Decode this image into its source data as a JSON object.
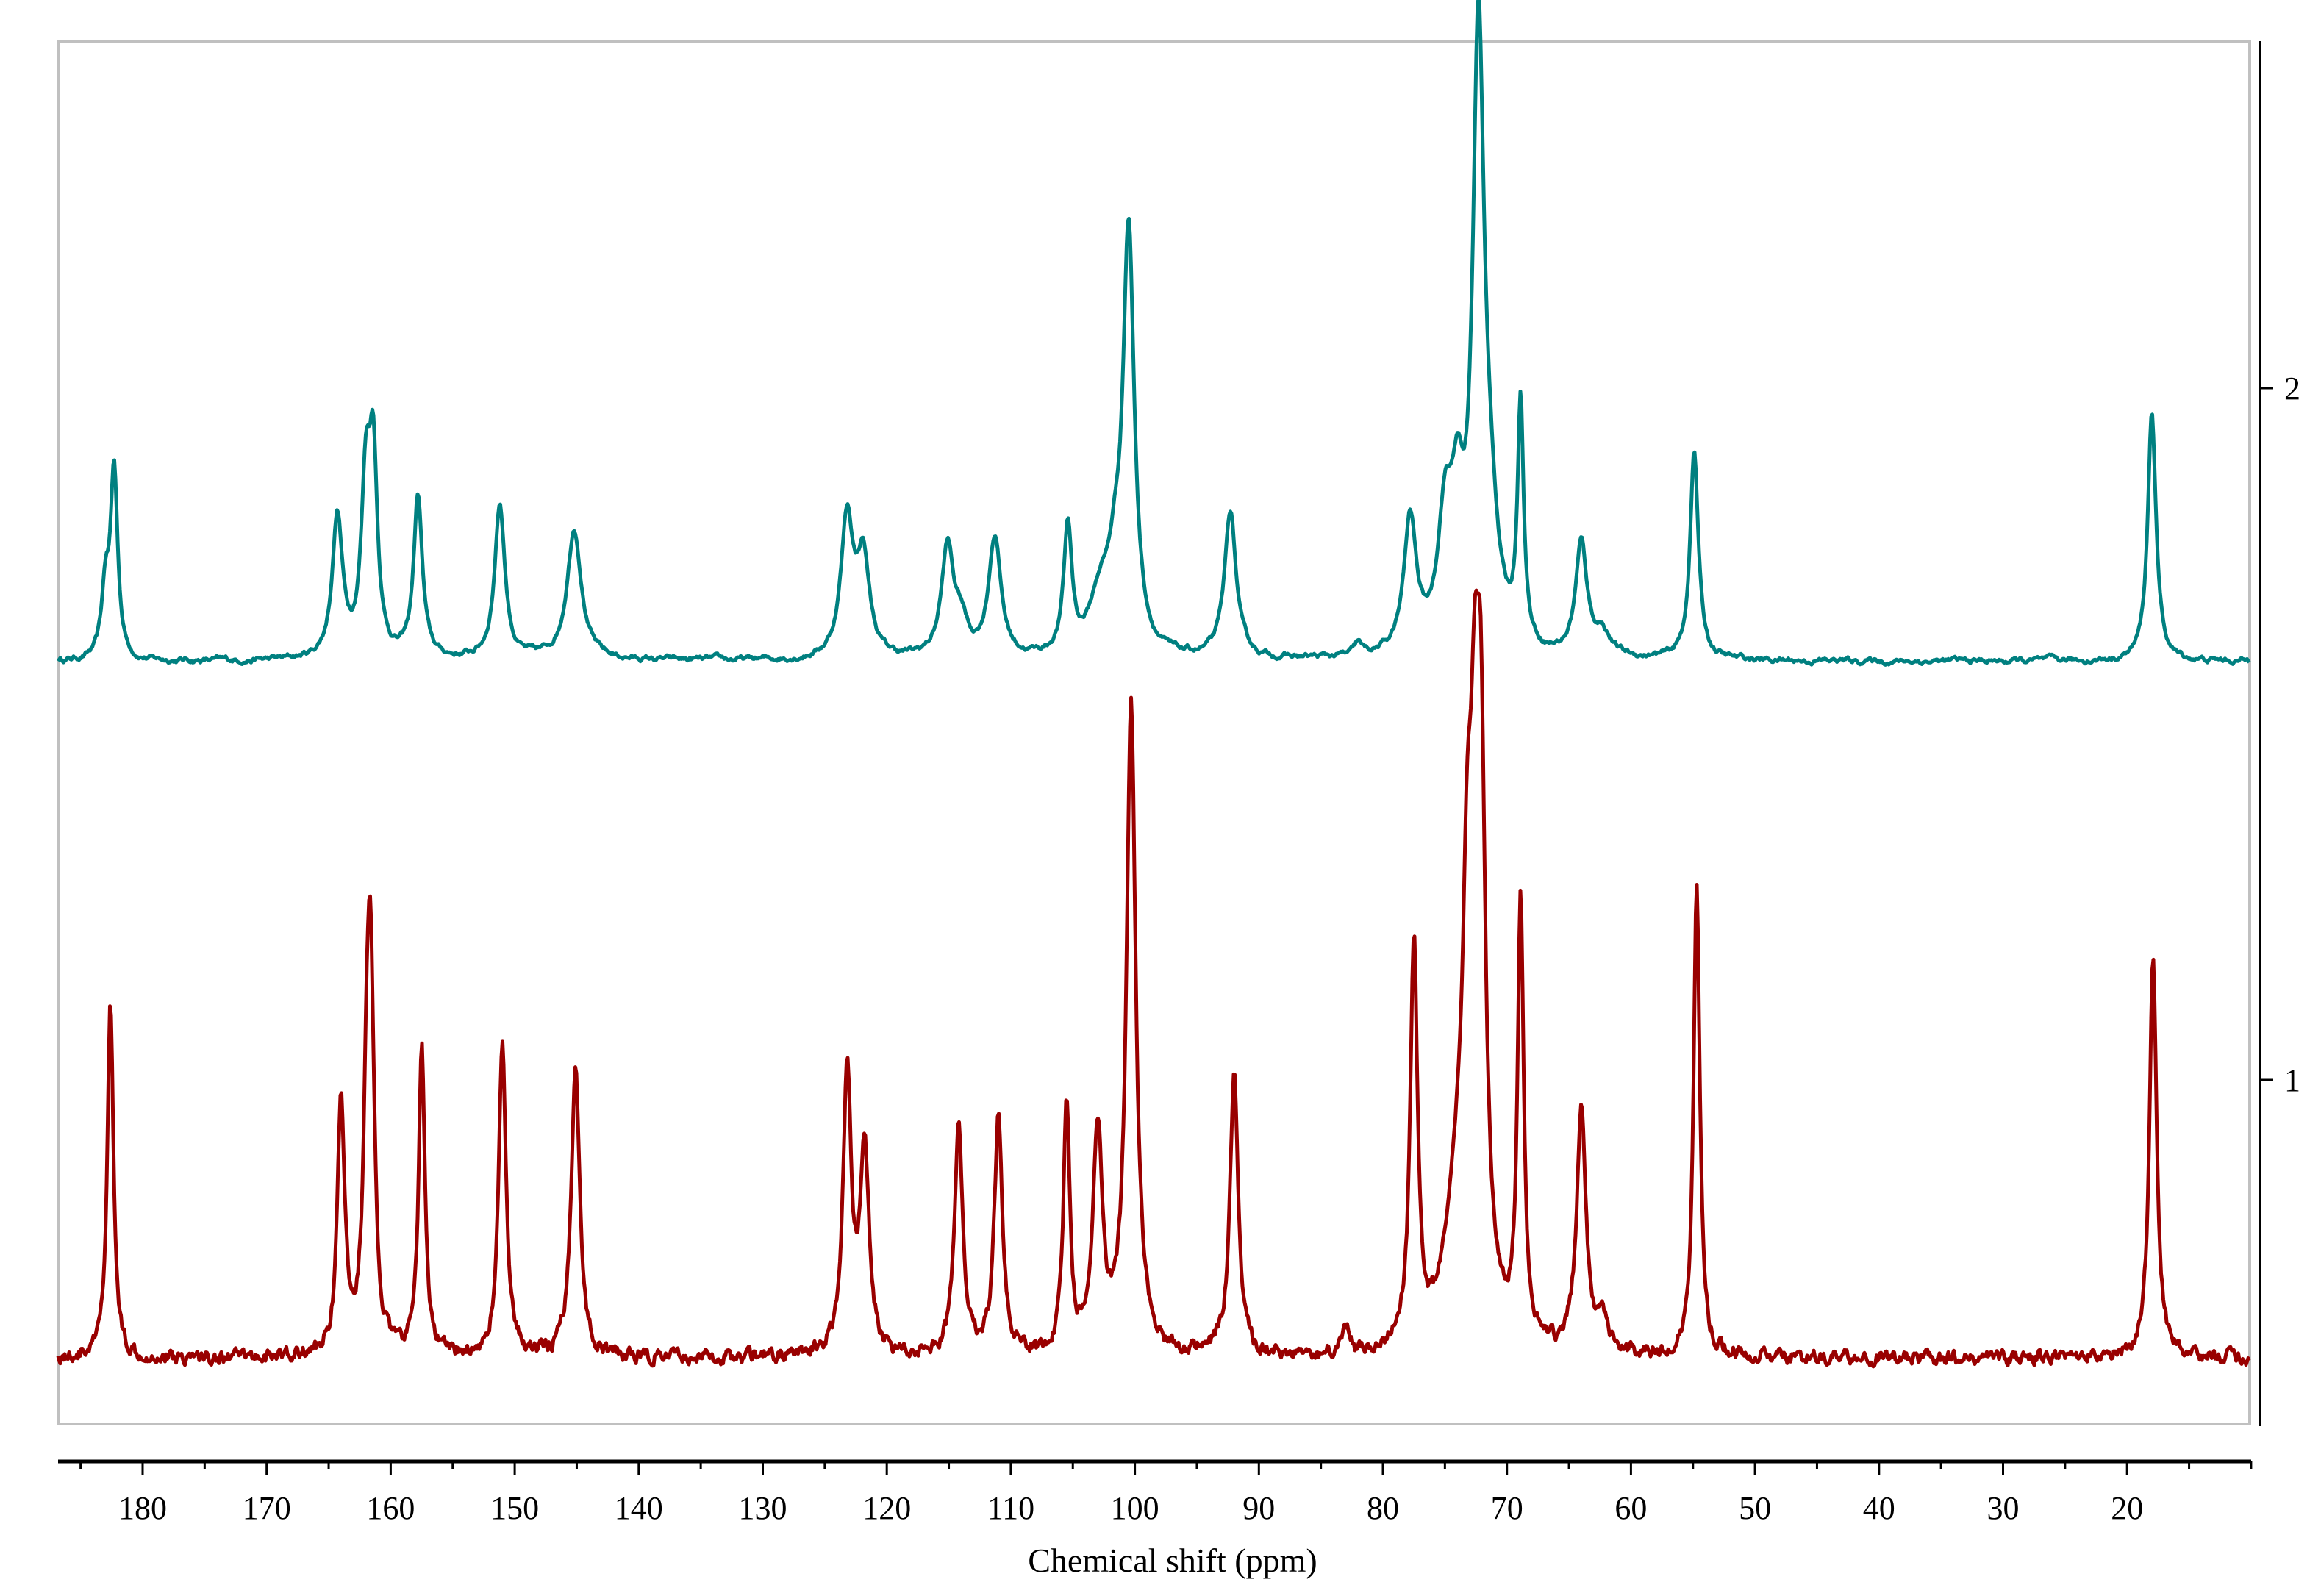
{
  "chart_data": {
    "type": "line",
    "title": "",
    "xlabel": "Chemical shift (ppm)",
    "ylabel": "",
    "x_reversed": true,
    "xlim": [
      187,
      10
    ],
    "x_ticks_major": [
      180,
      170,
      160,
      150,
      140,
      130,
      120,
      110,
      100,
      90,
      80,
      70,
      60,
      50,
      40,
      30,
      20
    ],
    "x_ticks_minor_step": 5,
    "y_ticks": [
      {
        "label": "2",
        "series_index": 0
      },
      {
        "label": "1",
        "series_index": 1
      }
    ],
    "grid": false,
    "legend": null,
    "series": [
      {
        "name": "2",
        "color": "#008080",
        "offset_label": "2",
        "peaks": [
          {
            "ppm": 183.0,
            "height": 0.22,
            "width": 0.35
          },
          {
            "ppm": 182.3,
            "height": 0.64,
            "width": 0.35
          },
          {
            "ppm": 164.3,
            "height": 0.48,
            "width": 0.5
          },
          {
            "ppm": 162.0,
            "height": 0.56,
            "width": 0.45
          },
          {
            "ppm": 161.4,
            "height": 0.62,
            "width": 0.4
          },
          {
            "ppm": 157.8,
            "height": 0.55,
            "width": 0.42
          },
          {
            "ppm": 151.2,
            "height": 0.53,
            "width": 0.5
          },
          {
            "ppm": 145.2,
            "height": 0.45,
            "width": 0.7
          },
          {
            "ppm": 123.2,
            "height": 0.47,
            "width": 0.6
          },
          {
            "ppm": 121.9,
            "height": 0.33,
            "width": 0.6
          },
          {
            "ppm": 115.1,
            "height": 0.37,
            "width": 0.6
          },
          {
            "ppm": 114.0,
            "height": 0.1,
            "width": 0.6
          },
          {
            "ppm": 111.3,
            "height": 0.41,
            "width": 0.6
          },
          {
            "ppm": 105.4,
            "height": 0.43,
            "width": 0.4
          },
          {
            "ppm": 102.8,
            "height": 0.18,
            "width": 1.0
          },
          {
            "ppm": 101.6,
            "height": 0.2,
            "width": 0.7
          },
          {
            "ppm": 100.5,
            "height": 1.42,
            "width": 0.55
          },
          {
            "ppm": 92.3,
            "height": 0.5,
            "width": 0.55
          },
          {
            "ppm": 82.0,
            "height": 0.04,
            "width": 0.3
          },
          {
            "ppm": 77.8,
            "height": 0.45,
            "width": 0.6
          },
          {
            "ppm": 75.0,
            "height": 0.42,
            "width": 0.7
          },
          {
            "ppm": 74.0,
            "height": 0.4,
            "width": 0.6
          },
          {
            "ppm": 72.3,
            "height": 2.02,
            "width": 0.55
          },
          {
            "ppm": 71.4,
            "height": 0.35,
            "width": 0.8
          },
          {
            "ppm": 68.9,
            "height": 0.82,
            "width": 0.3
          },
          {
            "ppm": 64.0,
            "height": 0.38,
            "width": 0.55
          },
          {
            "ppm": 62.3,
            "height": 0.08,
            "width": 0.8
          },
          {
            "ppm": 54.9,
            "height": 0.71,
            "width": 0.4
          },
          {
            "ppm": 18.0,
            "height": 0.85,
            "width": 0.4
          }
        ]
      },
      {
        "name": "1",
        "color": "#990000",
        "offset_label": "1",
        "peaks": [
          {
            "ppm": 182.6,
            "height": 0.97,
            "width": 0.3
          },
          {
            "ppm": 164.0,
            "height": 0.7,
            "width": 0.35
          },
          {
            "ppm": 161.9,
            "height": 0.6,
            "width": 0.35
          },
          {
            "ppm": 161.6,
            "height": 0.85,
            "width": 0.35
          },
          {
            "ppm": 157.5,
            "height": 0.85,
            "width": 0.3
          },
          {
            "ppm": 151.0,
            "height": 0.86,
            "width": 0.35
          },
          {
            "ppm": 145.1,
            "height": 0.82,
            "width": 0.4
          },
          {
            "ppm": 123.2,
            "height": 0.77,
            "width": 0.4
          },
          {
            "ppm": 121.8,
            "height": 0.55,
            "width": 0.45
          },
          {
            "ppm": 114.2,
            "height": 0.63,
            "width": 0.4
          },
          {
            "ppm": 111.0,
            "height": 0.65,
            "width": 0.4
          },
          {
            "ppm": 105.5,
            "height": 0.7,
            "width": 0.3
          },
          {
            "ppm": 103.0,
            "height": 0.62,
            "width": 0.45
          },
          {
            "ppm": 100.3,
            "height": 1.78,
            "width": 0.45
          },
          {
            "ppm": 92.0,
            "height": 0.76,
            "width": 0.4
          },
          {
            "ppm": 83.0,
            "height": 0.08,
            "width": 0.3
          },
          {
            "ppm": 77.5,
            "height": 1.1,
            "width": 0.35
          },
          {
            "ppm": 74.0,
            "height": 0.35,
            "width": 1.2
          },
          {
            "ppm": 73.2,
            "height": 0.9,
            "width": 0.45
          },
          {
            "ppm": 72.6,
            "height": 0.95,
            "width": 0.4
          },
          {
            "ppm": 72.1,
            "height": 1.4,
            "width": 0.45
          },
          {
            "ppm": 68.9,
            "height": 1.2,
            "width": 0.3
          },
          {
            "ppm": 64.0,
            "height": 0.68,
            "width": 0.45
          },
          {
            "ppm": 62.3,
            "height": 0.1,
            "width": 0.5
          },
          {
            "ppm": 54.7,
            "height": 1.3,
            "width": 0.3
          },
          {
            "ppm": 17.9,
            "height": 1.1,
            "width": 0.35
          }
        ]
      }
    ]
  }
}
